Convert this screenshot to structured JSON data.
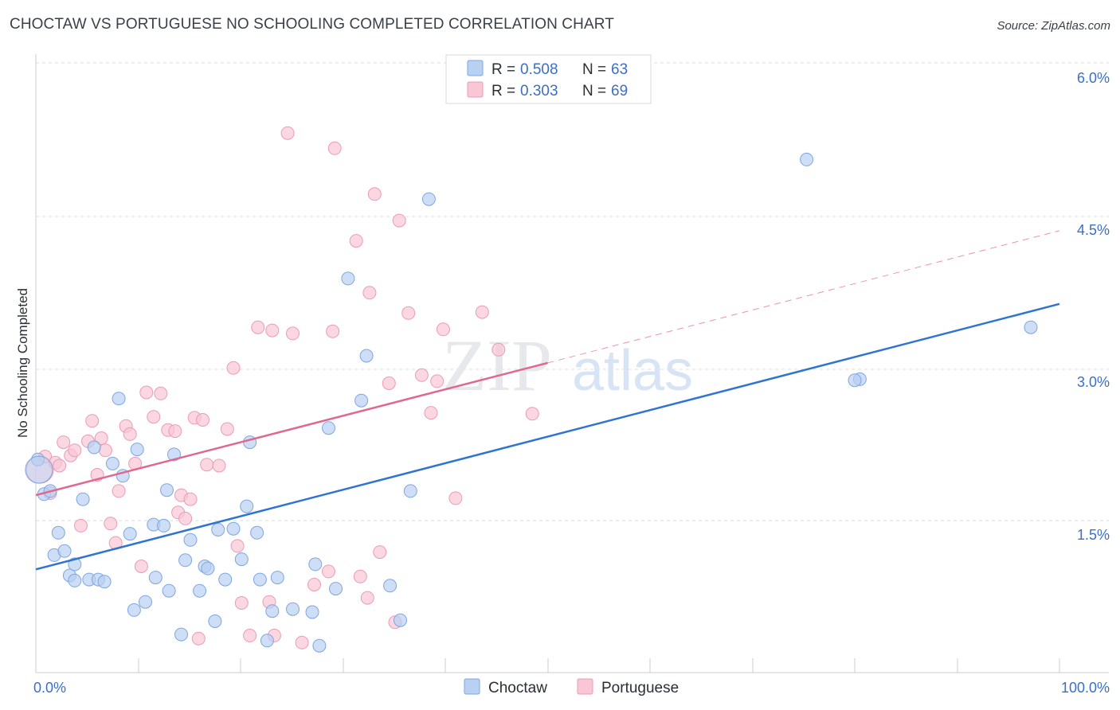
{
  "title": "CHOCTAW VS PORTUGUESE NO SCHOOLING COMPLETED CORRELATION CHART",
  "source": "Source: ZipAtlas.com",
  "watermark": {
    "zip": "ZIP",
    "atlas": "atlas"
  },
  "colors": {
    "choctaw_fill": "#b8d0f2",
    "choctaw_stroke": "#7ea6e0",
    "choctaw_line": "#2f74d0",
    "portuguese_fill": "#f9c6d6",
    "portuguese_stroke": "#ec9bb5",
    "portuguese_line": "#e0678e",
    "tick_label": "#3b6fc6",
    "grid": "#d9dce2"
  },
  "legend": {
    "r_label": "R =",
    "n_label": "N =",
    "rows": [
      {
        "series": "Choctaw",
        "r": "0.508",
        "n": "63"
      },
      {
        "series": "Portuguese",
        "r": "0.303",
        "n": "69"
      }
    ]
  },
  "chart_data": {
    "type": "scatter",
    "title": "CHOCTAW VS PORTUGUESE NO SCHOOLING COMPLETED CORRELATION CHART",
    "xlabel": "",
    "ylabel": "No Schooling Completed",
    "xlim": [
      0,
      100
    ],
    "ylim": [
      0,
      6.0
    ],
    "x_tick_labels": [
      "0.0%",
      "100.0%"
    ],
    "y_ticks": [
      {
        "value": 1.5,
        "label": "1.5%"
      },
      {
        "value": 3.0,
        "label": "3.0%"
      },
      {
        "value": 4.5,
        "label": "4.5%"
      },
      {
        "value": 6.0,
        "label": "6.0%"
      }
    ],
    "series": [
      {
        "name": "Choctaw",
        "trend": {
          "x0": 0,
          "y0": 1.02,
          "x1": 100,
          "y1": 3.63
        },
        "points": [
          [
            0.2,
            2.1
          ],
          [
            0.8,
            1.76
          ],
          [
            1.4,
            1.79
          ],
          [
            2.2,
            1.38
          ],
          [
            1.8,
            1.16
          ],
          [
            2.8,
            1.2
          ],
          [
            3.3,
            0.96
          ],
          [
            3.8,
            0.91
          ],
          [
            3.8,
            1.07
          ],
          [
            4.6,
            1.71
          ],
          [
            5.2,
            0.92
          ],
          [
            5.7,
            2.22
          ],
          [
            6.1,
            0.92
          ],
          [
            6.7,
            0.9
          ],
          [
            7.5,
            2.06
          ],
          [
            8.1,
            2.7
          ],
          [
            8.5,
            1.94
          ],
          [
            9.2,
            1.37
          ],
          [
            9.6,
            0.62
          ],
          [
            9.9,
            2.2
          ],
          [
            10.7,
            0.7
          ],
          [
            11.5,
            1.46
          ],
          [
            11.7,
            0.94
          ],
          [
            12.5,
            1.45
          ],
          [
            12.8,
            1.8
          ],
          [
            13.0,
            0.81
          ],
          [
            13.5,
            2.15
          ],
          [
            14.2,
            0.38
          ],
          [
            14.6,
            1.11
          ],
          [
            15.1,
            1.31
          ],
          [
            16.0,
            0.81
          ],
          [
            16.5,
            1.05
          ],
          [
            16.8,
            1.03
          ],
          [
            17.5,
            0.51
          ],
          [
            17.8,
            1.41
          ],
          [
            18.5,
            0.92
          ],
          [
            19.3,
            1.42
          ],
          [
            20.1,
            1.12
          ],
          [
            20.6,
            1.64
          ],
          [
            20.9,
            2.27
          ],
          [
            21.6,
            1.38
          ],
          [
            21.9,
            0.92
          ],
          [
            22.6,
            0.32
          ],
          [
            23.1,
            0.61
          ],
          [
            23.6,
            0.94
          ],
          [
            25.1,
            0.63
          ],
          [
            27.0,
            0.6
          ],
          [
            27.3,
            1.07
          ],
          [
            27.7,
            0.27
          ],
          [
            28.6,
            2.41
          ],
          [
            29.3,
            0.83
          ],
          [
            30.5,
            3.88
          ],
          [
            31.8,
            2.68
          ],
          [
            32.3,
            3.12
          ],
          [
            34.6,
            0.86
          ],
          [
            35.6,
            0.52
          ],
          [
            36.6,
            1.79
          ],
          [
            38.4,
            4.66
          ],
          [
            75.3,
            5.05
          ],
          [
            80.5,
            2.89
          ],
          [
            80.0,
            2.88
          ],
          [
            97.2,
            3.4
          ],
          [
            0.3,
            2.0
          ]
        ]
      },
      {
        "name": "Portuguese",
        "trend": {
          "x0": 0,
          "y0": 1.75,
          "x1": 50,
          "y1": 3.05,
          "dash_to_x": 100,
          "dash_to_y": 4.35
        },
        "points": [
          [
            0.4,
            2.0
          ],
          [
            0.9,
            2.13
          ],
          [
            1.4,
            1.77
          ],
          [
            1.9,
            2.07
          ],
          [
            2.3,
            2.04
          ],
          [
            2.7,
            2.27
          ],
          [
            3.4,
            2.14
          ],
          [
            3.8,
            2.19
          ],
          [
            4.4,
            1.45
          ],
          [
            5.1,
            2.28
          ],
          [
            5.5,
            2.48
          ],
          [
            6.0,
            1.95
          ],
          [
            6.4,
            2.31
          ],
          [
            6.8,
            2.19
          ],
          [
            7.3,
            1.47
          ],
          [
            7.8,
            1.28
          ],
          [
            8.1,
            1.79
          ],
          [
            8.8,
            2.43
          ],
          [
            9.2,
            2.35
          ],
          [
            9.7,
            2.06
          ],
          [
            10.3,
            1.05
          ],
          [
            10.8,
            2.76
          ],
          [
            11.5,
            2.52
          ],
          [
            12.2,
            2.75
          ],
          [
            12.9,
            2.39
          ],
          [
            13.6,
            2.38
          ],
          [
            13.9,
            1.58
          ],
          [
            14.2,
            1.75
          ],
          [
            14.6,
            1.52
          ],
          [
            15.1,
            1.71
          ],
          [
            15.5,
            2.51
          ],
          [
            15.9,
            0.34
          ],
          [
            16.3,
            2.49
          ],
          [
            16.7,
            2.05
          ],
          [
            17.9,
            2.04
          ],
          [
            18.7,
            2.4
          ],
          [
            19.3,
            3.0
          ],
          [
            19.7,
            1.25
          ],
          [
            20.1,
            0.69
          ],
          [
            20.9,
            0.37
          ],
          [
            21.7,
            3.4
          ],
          [
            22.8,
            0.7
          ],
          [
            23.1,
            3.37
          ],
          [
            23.3,
            0.37
          ],
          [
            25.1,
            3.34
          ],
          [
            26.0,
            0.3
          ],
          [
            27.2,
            0.87
          ],
          [
            28.6,
            1.0
          ],
          [
            29.0,
            3.36
          ],
          [
            31.3,
            4.25
          ],
          [
            31.7,
            0.95
          ],
          [
            32.4,
            0.74
          ],
          [
            32.6,
            3.74
          ],
          [
            33.1,
            4.71
          ],
          [
            33.6,
            1.19
          ],
          [
            34.5,
            2.85
          ],
          [
            35.1,
            0.5
          ],
          [
            35.5,
            4.45
          ],
          [
            36.4,
            3.54
          ],
          [
            37.7,
            2.93
          ],
          [
            38.6,
            2.56
          ],
          [
            39.2,
            2.87
          ],
          [
            39.8,
            3.38
          ],
          [
            41.0,
            1.72
          ],
          [
            43.6,
            3.55
          ],
          [
            45.2,
            3.18
          ],
          [
            48.5,
            2.55
          ],
          [
            24.6,
            5.31
          ],
          [
            29.2,
            5.16
          ]
        ]
      }
    ]
  },
  "bottom_legend": [
    "Choctaw",
    "Portuguese"
  ]
}
